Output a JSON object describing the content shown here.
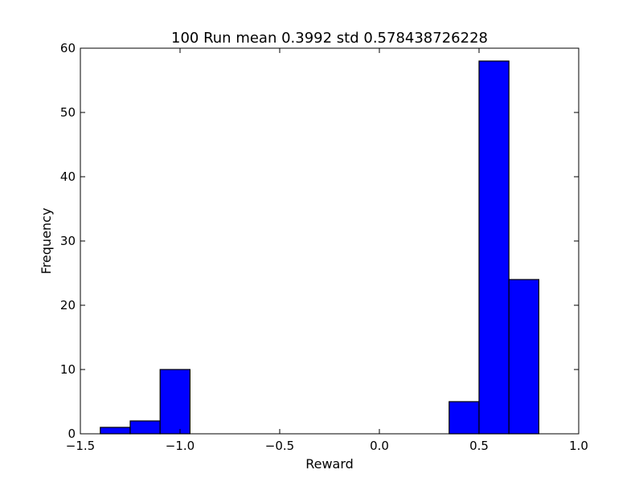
{
  "chart_data": {
    "type": "bar",
    "title": "100 Run mean 0.3992 std 0.578438726228",
    "xlabel": "Reward",
    "ylabel": "Frequency",
    "xlim": [
      -1.5,
      1.0
    ],
    "ylim": [
      0,
      60
    ],
    "grid": false,
    "legend": "none",
    "x_ticks": [
      -1.5,
      -1.0,
      -0.5,
      0.0,
      0.5,
      1.0
    ],
    "x_tick_labels": [
      "−1.5",
      "−1.0",
      "−0.5",
      "0.0",
      "0.5",
      "1.0"
    ],
    "y_ticks": [
      0,
      10,
      20,
      30,
      40,
      50,
      60
    ],
    "y_tick_labels": [
      "0",
      "10",
      "20",
      "30",
      "40",
      "50",
      "60"
    ],
    "bars": [
      {
        "x0": -1.4,
        "x1": -1.25,
        "value": 1
      },
      {
        "x0": -1.25,
        "x1": -1.1,
        "value": 2
      },
      {
        "x0": -1.1,
        "x1": -0.95,
        "value": 10
      },
      {
        "x0": 0.35,
        "x1": 0.5,
        "value": 5
      },
      {
        "x0": 0.5,
        "x1": 0.65,
        "value": 58
      },
      {
        "x0": 0.65,
        "x1": 0.8,
        "value": 24
      }
    ],
    "bar_color": "#0000ff",
    "edge_color": "#000000"
  }
}
